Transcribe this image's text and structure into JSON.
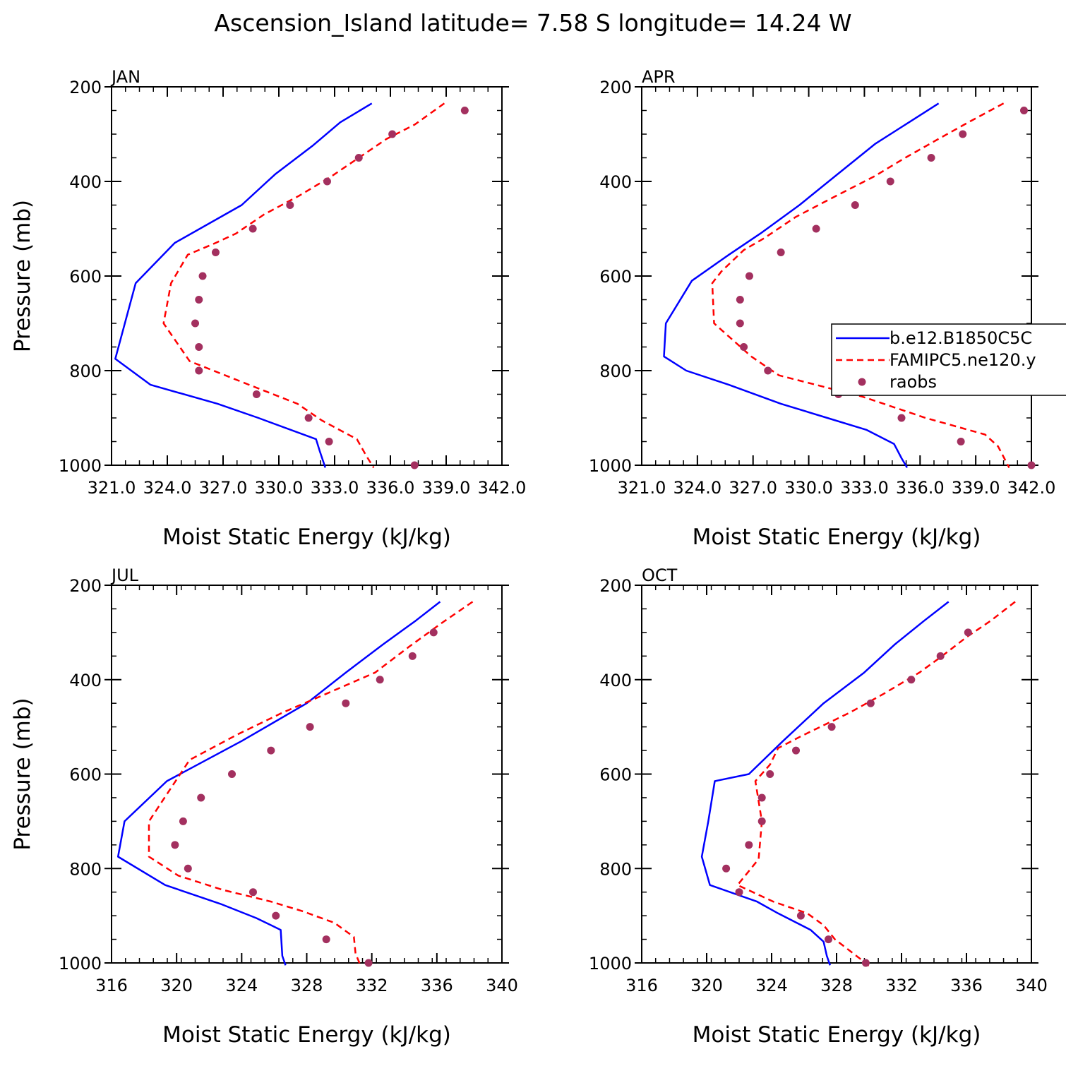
{
  "title": "Ascension_Island   latitude= 7.58 S longitude= 14.24 W",
  "legend": {
    "entries": [
      {
        "label": "b.e12.B1850C5C",
        "color": "#0000ff",
        "style": "solid"
      },
      {
        "label": "FAMIPC5.ne120.y",
        "color": "#ff0000",
        "style": "dashed"
      },
      {
        "label": "raobs",
        "color": "#a3305f",
        "style": "dot"
      }
    ]
  },
  "chart_data": [
    {
      "type": "line",
      "panel_title": "JAN",
      "xlabel": "Moist Static Energy (kJ/kg)",
      "ylabel": "Pressure (mb)",
      "xlim": [
        321,
        342
      ],
      "ylim": [
        1000,
        200
      ],
      "xticks": [
        321,
        324,
        327,
        330,
        333,
        336,
        339,
        342
      ],
      "xtick_labels": [
        "321.0",
        "324.0",
        "327.0",
        "330.0",
        "333.0",
        "336.0",
        "339.0",
        "342.0"
      ],
      "yticks": [
        200,
        400,
        600,
        800,
        1000
      ],
      "ytick_labels": [
        "200",
        "400",
        "600",
        "800",
        "1000"
      ],
      "series": [
        {
          "name": "b.e12.B1850C5C",
          "x": [
            335.0,
            333.3,
            331.8,
            329.8,
            328.0,
            324.4,
            322.3,
            321.2,
            323.1,
            326.7,
            328.9,
            332.0,
            332.2,
            332.5
          ],
          "y": [
            235,
            275,
            325,
            385,
            450,
            530,
            615,
            775,
            830,
            870,
            900,
            945,
            970,
            1005
          ]
        },
        {
          "name": "FAMIPC5.ne120.y",
          "x": [
            338.9,
            337.3,
            335.8,
            334.3,
            332.8,
            331.1,
            329.2,
            327.7,
            326.6,
            325.1,
            324.2,
            323.8,
            325.2,
            328.4,
            331.0,
            332.3,
            334.2,
            334.7,
            335.1
          ],
          "y": [
            235,
            280,
            310,
            350,
            390,
            430,
            470,
            510,
            530,
            555,
            615,
            700,
            780,
            830,
            870,
            905,
            945,
            980,
            1005
          ]
        },
        {
          "name": "raobs",
          "x": [
            340.0,
            336.1,
            334.3,
            332.6,
            330.6,
            328.6,
            326.6,
            325.9,
            325.7,
            325.5,
            325.7,
            325.7,
            328.8,
            331.6,
            332.7,
            337.3
          ],
          "y": [
            250,
            300,
            350,
            400,
            450,
            500,
            550,
            600,
            650,
            700,
            750,
            800,
            850,
            900,
            950,
            1000
          ]
        }
      ]
    },
    {
      "type": "line",
      "panel_title": "APR",
      "xlabel": "Moist Static Energy (kJ/kg)",
      "ylabel": "",
      "xlim": [
        321,
        342
      ],
      "ylim": [
        1000,
        200
      ],
      "xticks": [
        321,
        324,
        327,
        330,
        333,
        336,
        339,
        342
      ],
      "xtick_labels": [
        "321.0",
        "324.0",
        "327.0",
        "330.0",
        "333.0",
        "336.0",
        "339.0",
        "342.0"
      ],
      "yticks": [
        200,
        400,
        600,
        800,
        1000
      ],
      "ytick_labels": [
        "200",
        "400",
        "600",
        "800",
        "1000"
      ],
      "series": [
        {
          "name": "b.e12.B1850C5C",
          "x": [
            337.0,
            335.4,
            333.6,
            331.7,
            329.5,
            327.4,
            325.7,
            323.7,
            322.3,
            322.2,
            323.4,
            325.7,
            328.5,
            331.0,
            333.1,
            334.6,
            335.0,
            335.3
          ],
          "y": [
            235,
            275,
            320,
            380,
            450,
            510,
            555,
            610,
            700,
            770,
            800,
            830,
            870,
            900,
            925,
            955,
            985,
            1005
          ]
        },
        {
          "name": "FAMIPC5.ne120.y",
          "x": [
            340.5,
            338.6,
            337.0,
            335.2,
            333.5,
            331.5,
            329.3,
            327.6,
            326.5,
            325.3,
            324.8,
            324.9,
            326.9,
            328.4,
            332.9,
            336.3,
            339.5,
            340.2,
            340.8
          ],
          "y": [
            235,
            275,
            310,
            350,
            390,
            430,
            475,
            520,
            545,
            590,
            615,
            700,
            770,
            810,
            855,
            900,
            935,
            960,
            1005
          ]
        },
        {
          "name": "raobs",
          "x": [
            341.6,
            338.3,
            336.6,
            334.4,
            332.5,
            330.4,
            328.5,
            326.8,
            326.3,
            326.3,
            326.5,
            327.8,
            331.6,
            335.0,
            338.2,
            342.0
          ],
          "y": [
            250,
            300,
            350,
            400,
            450,
            500,
            550,
            600,
            650,
            700,
            750,
            800,
            850,
            900,
            950,
            1000
          ]
        }
      ]
    },
    {
      "type": "line",
      "panel_title": "JUL",
      "xlabel": "Moist Static Energy (kJ/kg)",
      "ylabel": "Pressure (mb)",
      "xlim": [
        316,
        340
      ],
      "ylim": [
        1000,
        200
      ],
      "xticks": [
        316,
        320,
        324,
        328,
        332,
        336,
        340
      ],
      "xtick_labels": [
        "316",
        "320",
        "324",
        "328",
        "332",
        "336",
        "340"
      ],
      "yticks": [
        200,
        400,
        600,
        800,
        1000
      ],
      "ytick_labels": [
        "200",
        "400",
        "600",
        "800",
        "1000"
      ],
      "series": [
        {
          "name": "b.e12.B1850C5C",
          "x": [
            336.2,
            334.7,
            332.7,
            330.4,
            328.0,
            324.0,
            319.4,
            316.8,
            316.4,
            319.3,
            322.7,
            324.9,
            326.4,
            326.5,
            326.7
          ],
          "y": [
            235,
            275,
            325,
            385,
            450,
            530,
            615,
            700,
            775,
            835,
            875,
            905,
            930,
            985,
            1005
          ]
        },
        {
          "name": "FAMIPC5.ne120.y",
          "x": [
            338.2,
            336.3,
            334.3,
            332.2,
            329.2,
            326.5,
            323.8,
            320.8,
            318.3,
            318.3,
            320.1,
            322.8,
            325.8,
            327.7,
            329.7,
            330.9,
            331.0,
            331.3
          ],
          "y": [
            235,
            280,
            330,
            385,
            430,
            470,
            515,
            570,
            700,
            775,
            815,
            845,
            870,
            890,
            915,
            945,
            980,
            1005
          ]
        },
        {
          "name": "raobs",
          "x": [
            335.8,
            334.5,
            332.5,
            330.4,
            328.2,
            325.8,
            323.4,
            321.5,
            320.4,
            319.9,
            320.7,
            324.7,
            326.1,
            329.2,
            331.8
          ],
          "y": [
            300,
            350,
            400,
            450,
            500,
            550,
            600,
            650,
            700,
            750,
            800,
            850,
            900,
            950,
            1000
          ]
        }
      ]
    },
    {
      "type": "line",
      "panel_title": "OCT",
      "xlabel": "Moist Static Energy (kJ/kg)",
      "ylabel": "",
      "xlim": [
        316,
        340
      ],
      "ylim": [
        1000,
        200
      ],
      "xticks": [
        316,
        320,
        324,
        328,
        332,
        336,
        340
      ],
      "xtick_labels": [
        "316",
        "320",
        "324",
        "328",
        "332",
        "336",
        "340"
      ],
      "yticks": [
        200,
        400,
        600,
        800,
        1000
      ],
      "ytick_labels": [
        "200",
        "400",
        "600",
        "800",
        "1000"
      ],
      "series": [
        {
          "name": "b.e12.B1850C5C",
          "x": [
            334.9,
            333.4,
            331.6,
            329.7,
            327.2,
            324.7,
            322.6,
            320.5,
            320.1,
            319.7,
            320.2,
            323.1,
            324.4,
            326.4,
            327.2,
            327.4,
            327.6
          ],
          "y": [
            235,
            275,
            325,
            385,
            450,
            530,
            600,
            615,
            700,
            775,
            835,
            870,
            895,
            930,
            955,
            985,
            1005
          ]
        },
        {
          "name": "FAMIPC5.ne120.y",
          "x": [
            339.0,
            337.5,
            336.0,
            334.5,
            333.1,
            330.9,
            328.8,
            327.0,
            325.8,
            324.4,
            323.9,
            323.0,
            323.4,
            323.2,
            321.9,
            324.1,
            326.2,
            327.2,
            327.9,
            329.6,
            329.9,
            330.1
          ],
          "y": [
            235,
            275,
            310,
            350,
            385,
            430,
            470,
            500,
            520,
            545,
            580,
            615,
            700,
            780,
            835,
            870,
            895,
            920,
            950,
            995,
            1005,
            1005
          ]
        },
        {
          "name": "raobs",
          "x": [
            336.1,
            334.4,
            332.6,
            330.1,
            327.7,
            325.5,
            323.9,
            323.4,
            323.4,
            322.6,
            321.2,
            322.0,
            325.8,
            327.5,
            329.8
          ],
          "y": [
            300,
            350,
            400,
            450,
            500,
            550,
            600,
            650,
            700,
            750,
            800,
            850,
            900,
            950,
            1000
          ]
        }
      ]
    }
  ]
}
